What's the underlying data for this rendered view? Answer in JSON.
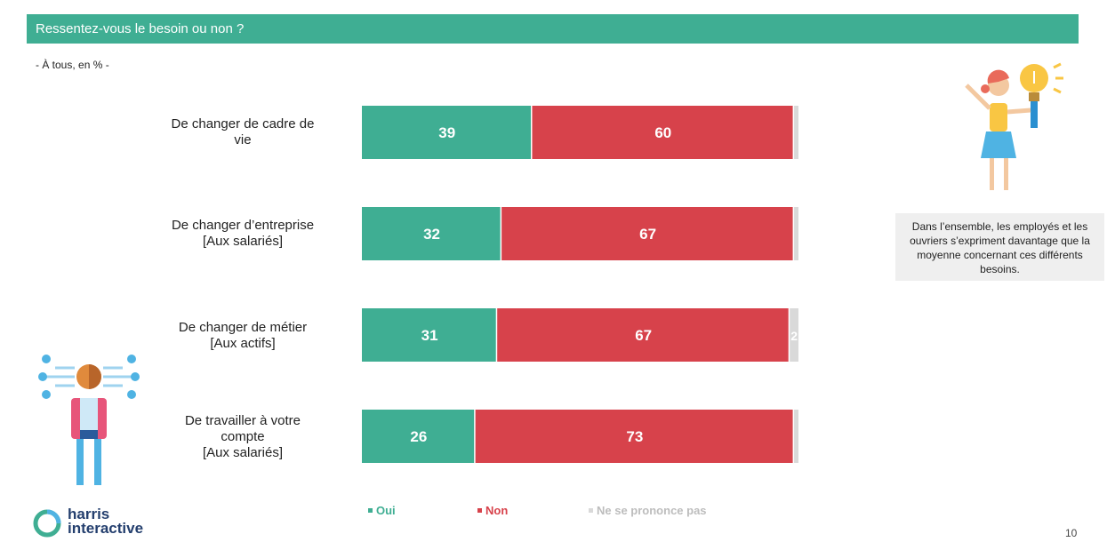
{
  "header": {
    "title": "Ressentez-vous le besoin ou non ?"
  },
  "subtitle": "- À tous, en % -",
  "colors": {
    "oui": "#3fae93",
    "non": "#d7424b",
    "nsp": "#d9d9d9"
  },
  "chart_data": {
    "type": "bar",
    "orientation": "horizontal-stacked-100",
    "categories": [
      [
        "De changer de cadre de",
        "vie"
      ],
      [
        "De changer d’entreprise",
        "[Aux salariés]"
      ],
      [
        "De changer de métier",
        "[Aux actifs]"
      ],
      [
        "De travailler à votre",
        "compte",
        "[Aux salariés]"
      ]
    ],
    "series": [
      {
        "name": "Oui",
        "values": [
          39,
          32,
          31,
          26
        ]
      },
      {
        "name": "Non",
        "values": [
          60,
          67,
          67,
          73
        ]
      },
      {
        "name": "Ne se prononce pas",
        "values": [
          1,
          1,
          2,
          1
        ]
      }
    ],
    "data_labels": [
      [
        "39",
        "60",
        ""
      ],
      [
        "32",
        "67",
        ""
      ],
      [
        "31",
        "67",
        "2"
      ],
      [
        "26",
        "73",
        ""
      ]
    ],
    "xlim": [
      0,
      100
    ],
    "legend_position": "bottom"
  },
  "legend": {
    "oui": "Oui",
    "non": "Non",
    "nsp": "Ne se prononce pas"
  },
  "callout": {
    "text": "Dans l’ensemble, les employés et les ouvriers s’expriment davantage que la moyenne concernant ces différents besoins."
  },
  "logo": {
    "line1": "harris",
    "line2": "interactive"
  },
  "page_number": "10"
}
